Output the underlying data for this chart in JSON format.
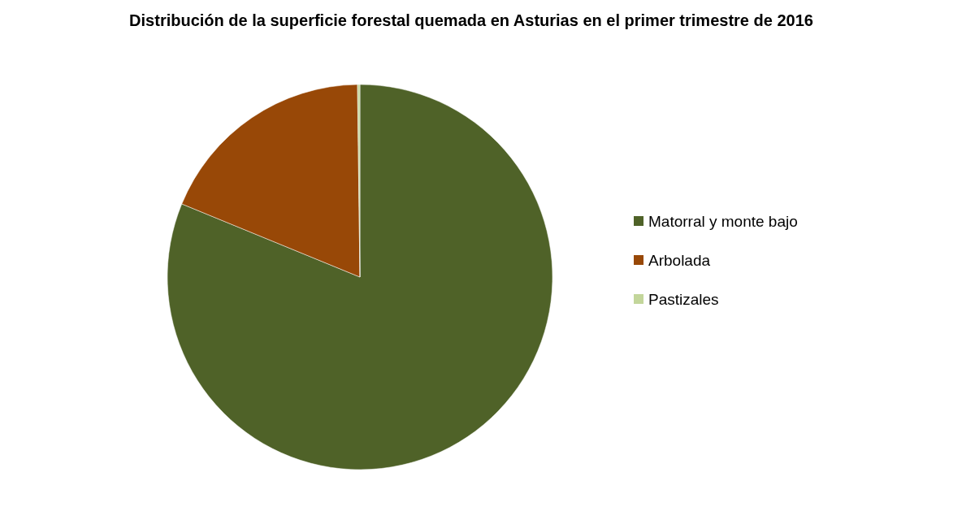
{
  "chart_data": {
    "type": "pie",
    "title": "Distribución de la superficie forestal quemada en Asturias en el primer trimestre de 2016",
    "categories": [
      "Matorral y monte bajo",
      "Arbolada",
      "Pastizales"
    ],
    "values": [
      81.2,
      18.6,
      0.2
    ],
    "colors": [
      "#4f6228",
      "#984807",
      "#c3d69b"
    ],
    "legend": "right"
  }
}
